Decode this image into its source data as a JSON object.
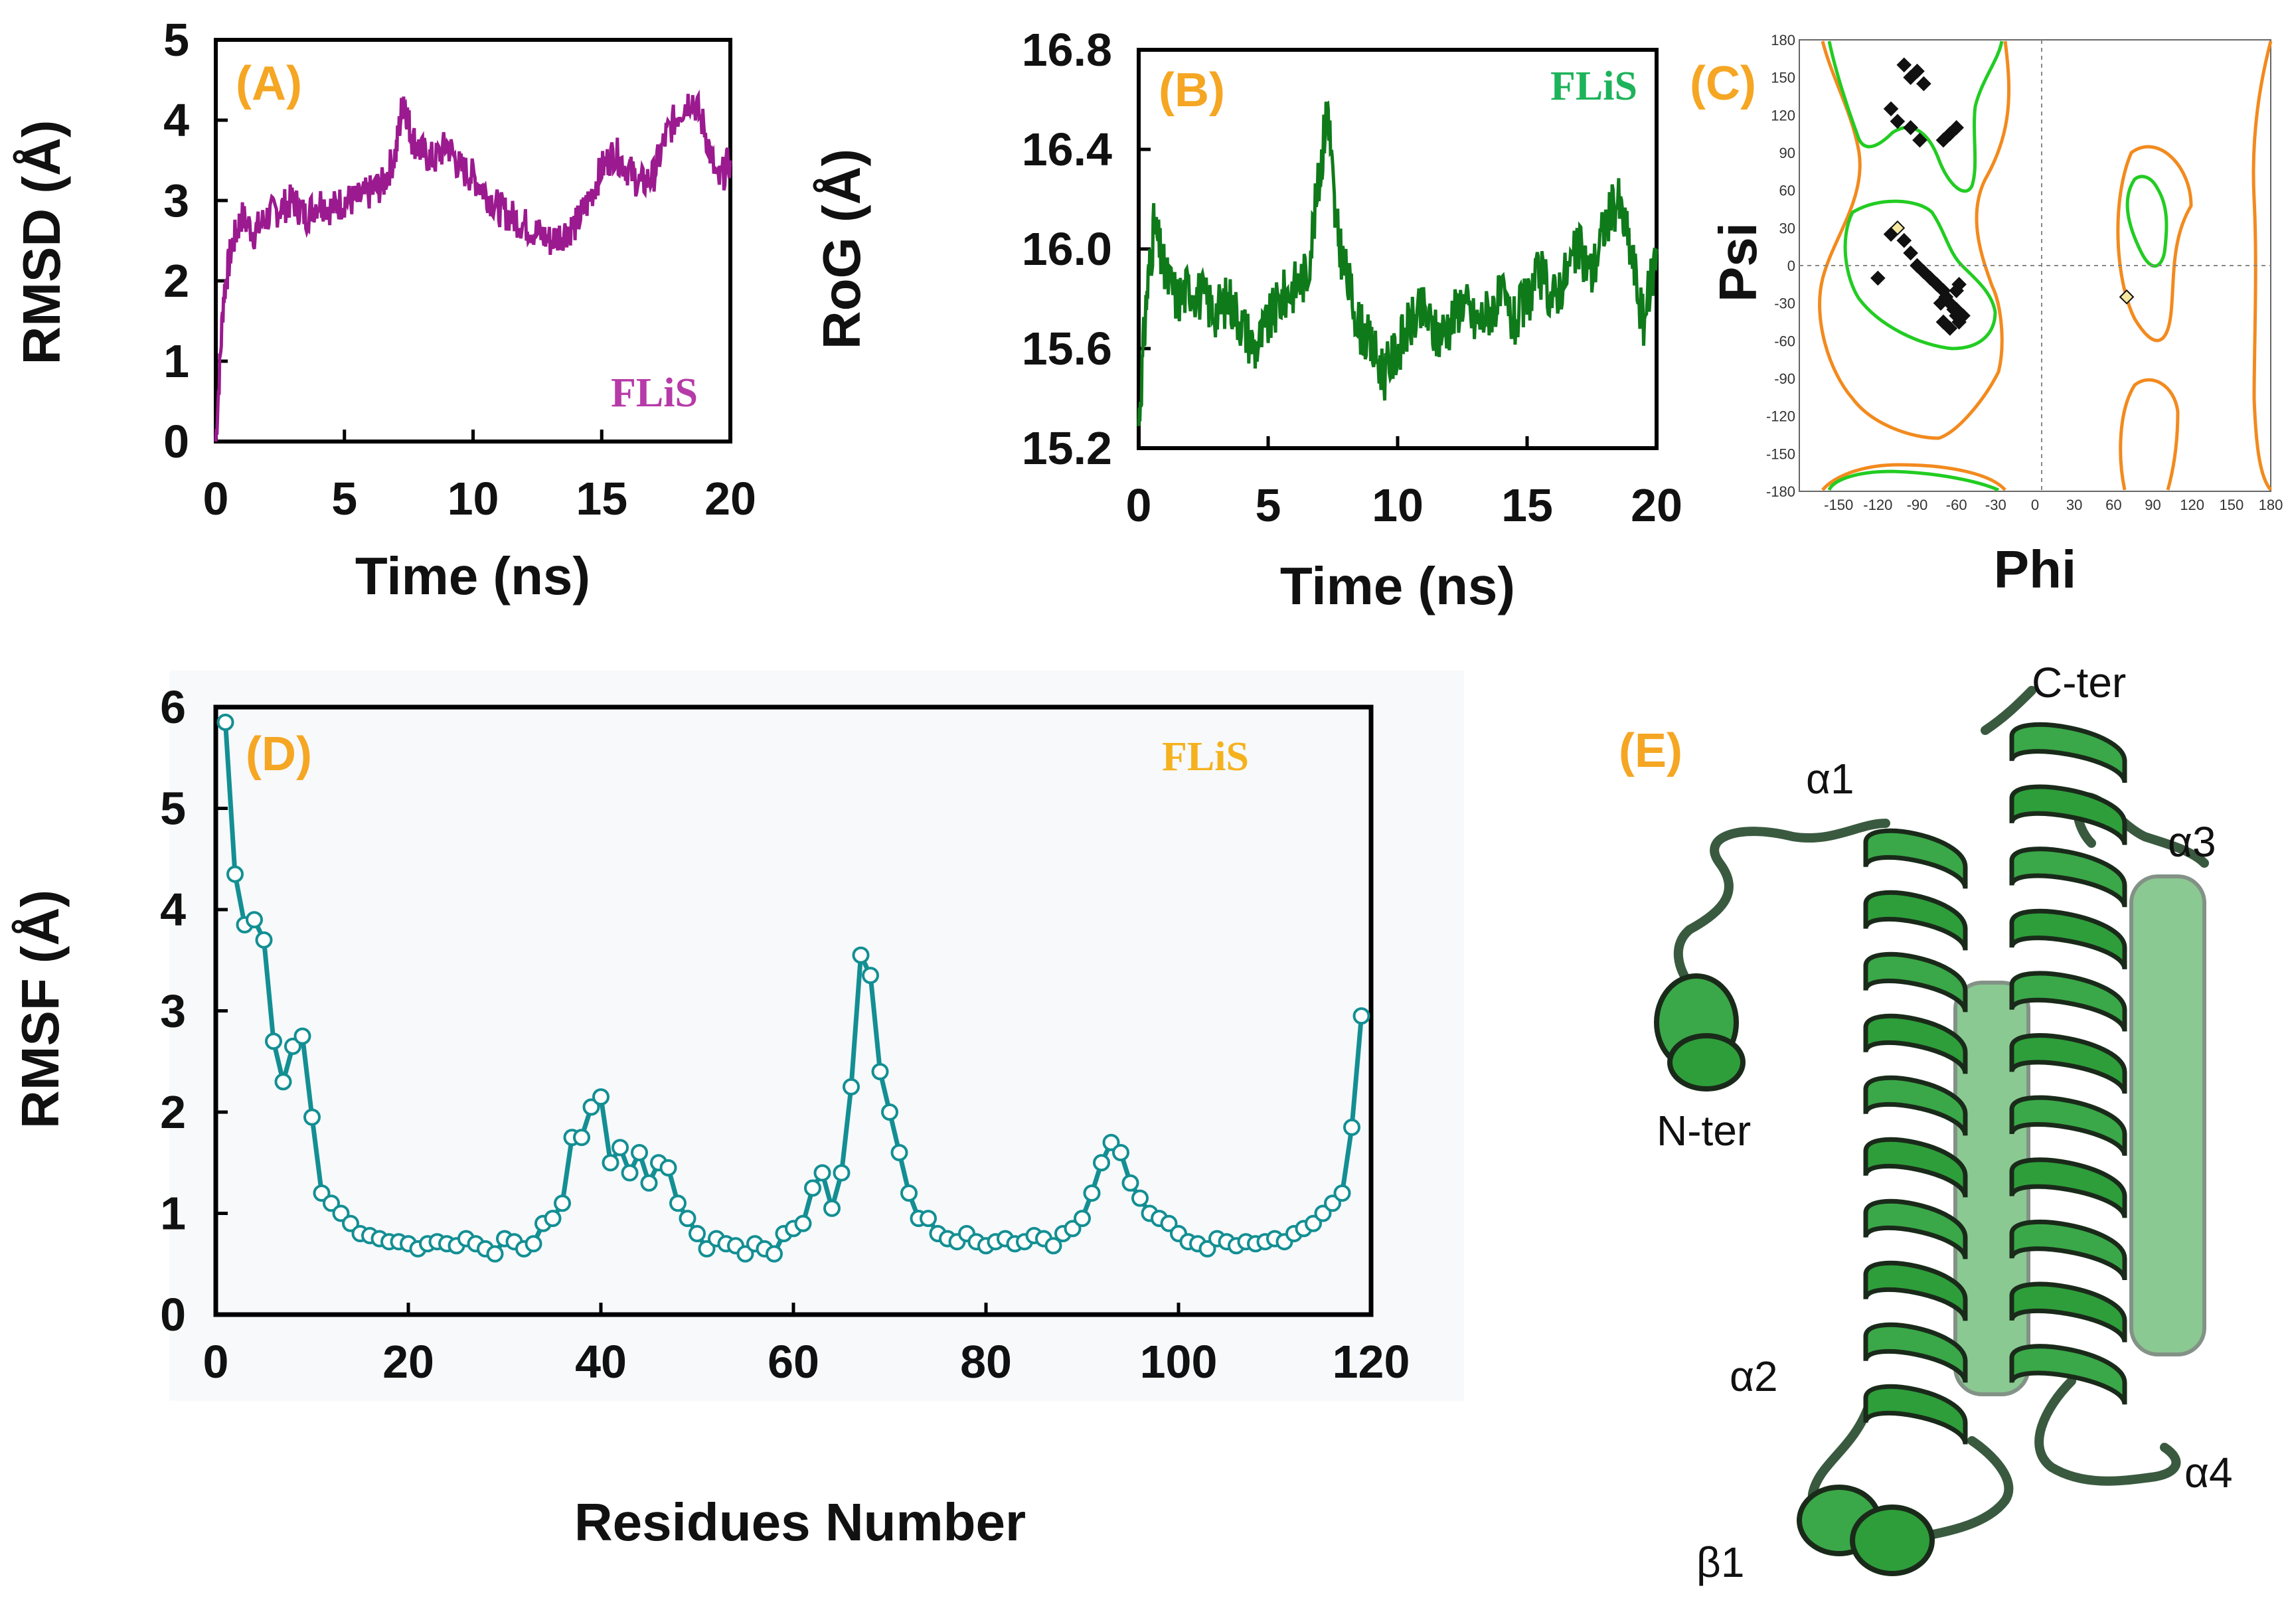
{
  "chart_data": [
    {
      "id": "A",
      "type": "line",
      "panel_label": "(A)",
      "legend": "FLiS",
      "xlabel": "Time  (ns)",
      "ylabel": "RMSD (Å)",
      "xlim": [
        0,
        20
      ],
      "ylim": [
        0,
        5
      ],
      "xticks": [
        "0",
        "5",
        "10",
        "15",
        "20"
      ],
      "yticks": [
        "0",
        "1",
        "2",
        "3",
        "4",
        "5"
      ],
      "color": "#9b1a8f",
      "series": [
        {
          "name": "FLiS",
          "x": [
            0,
            0.3,
            0.6,
            1,
            1.5,
            2,
            2.5,
            3,
            3.5,
            4,
            4.5,
            5,
            5.5,
            6,
            6.5,
            7,
            7.3,
            7.6,
            8,
            8.5,
            9,
            9.5,
            10,
            10.5,
            11,
            11.5,
            12,
            12.5,
            13,
            13.5,
            14,
            14.5,
            15,
            15.5,
            16,
            16.5,
            17,
            17.5,
            18,
            18.5,
            19,
            19.5,
            20
          ],
          "y": [
            0,
            1.8,
            2.4,
            2.8,
            2.6,
            2.8,
            2.9,
            3.0,
            2.8,
            3.0,
            2.9,
            3.0,
            3.0,
            3.1,
            3.2,
            3.6,
            4.3,
            3.8,
            3.6,
            3.5,
            3.7,
            3.4,
            3.3,
            3.1,
            2.9,
            2.8,
            2.7,
            2.6,
            2.5,
            2.6,
            2.7,
            3.0,
            3.4,
            3.6,
            3.4,
            3.2,
            3.3,
            3.8,
            4.1,
            4.3,
            3.9,
            3.2,
            3.5
          ]
        }
      ]
    },
    {
      "id": "B",
      "type": "line",
      "panel_label": "(B)",
      "legend": "FLiS",
      "xlabel": "Time (ns)",
      "ylabel": "RoG (Å)",
      "xlim": [
        0,
        20
      ],
      "ylim": [
        15.2,
        16.8
      ],
      "xticks": [
        "0",
        "5",
        "10",
        "15",
        "20"
      ],
      "yticks": [
        "15.2",
        "15.6",
        "16.0",
        "16.4",
        "16.8"
      ],
      "color": "#0f7a1a",
      "series": [
        {
          "name": "FLiS",
          "x": [
            0,
            0.3,
            0.6,
            1,
            1.5,
            2,
            2.5,
            3,
            3.5,
            4,
            4.5,
            5,
            5.5,
            6,
            6.5,
            7,
            7.3,
            7.6,
            8,
            8.5,
            9,
            9.5,
            10,
            10.5,
            11,
            11.5,
            12,
            12.5,
            13,
            13.5,
            14,
            14.5,
            15,
            15.5,
            16,
            16.5,
            17,
            17.5,
            18,
            18.5,
            19,
            19.5,
            20
          ],
          "y": [
            15.3,
            15.8,
            16.1,
            15.9,
            15.8,
            15.85,
            15.8,
            15.75,
            15.8,
            15.7,
            15.6,
            15.7,
            15.8,
            15.85,
            15.9,
            16.3,
            16.6,
            16.1,
            15.9,
            15.7,
            15.6,
            15.5,
            15.6,
            15.7,
            15.75,
            15.65,
            15.7,
            15.8,
            15.7,
            15.75,
            15.8,
            15.7,
            15.8,
            15.9,
            15.8,
            15.9,
            16.0,
            15.9,
            16.1,
            16.2,
            16.0,
            15.7,
            16.0
          ]
        }
      ]
    },
    {
      "id": "C",
      "type": "scatter",
      "panel_label": "(C)",
      "xlabel": "Phi",
      "ylabel": "Psi",
      "xlim": [
        -180,
        180
      ],
      "ylim": [
        -180,
        180
      ],
      "xticks": [
        "-150",
        "-120",
        "-90",
        "-60",
        "-30",
        "0",
        "30",
        "60",
        "90",
        "120",
        "150",
        "180"
      ],
      "yticks": [
        "180",
        "150",
        "120",
        "90",
        "60",
        "30",
        "0",
        "-30",
        "-60",
        "-90",
        "-120",
        "-150",
        "-180"
      ],
      "favored_color": "#22cc22",
      "allowed_color": "#f28a1e",
      "series": [
        {
          "name": "residues",
          "x": [
            -100,
            -95,
            -90,
            -85,
            -110,
            -105,
            -95,
            -88,
            -65,
            -60,
            -70,
            -110,
            -100,
            -95,
            -90,
            -85,
            -80,
            -75,
            -70,
            -68,
            -65,
            -62,
            -60,
            -58,
            -55,
            -60,
            -65,
            -70,
            -72,
            -60,
            -58,
            -120,
            -105,
            70
          ],
          "y": [
            160,
            150,
            155,
            145,
            125,
            115,
            110,
            100,
            105,
            110,
            100,
            25,
            20,
            10,
            0,
            -5,
            -10,
            -15,
            -20,
            -25,
            -30,
            -35,
            -40,
            -45,
            -40,
            -35,
            -50,
            -45,
            -30,
            -20,
            -15,
            -10,
            30,
            -25
          ]
        }
      ]
    },
    {
      "id": "D",
      "type": "line",
      "panel_label": "(D)",
      "legend": "FLiS",
      "xlabel": "Residues Number",
      "ylabel": "RMSF (Å)",
      "xlim": [
        0,
        120
      ],
      "ylim": [
        0,
        6
      ],
      "xticks": [
        "0",
        "20",
        "40",
        "60",
        "80",
        "100",
        "120"
      ],
      "yticks": [
        "0",
        "1",
        "2",
        "3",
        "4",
        "5",
        "6"
      ],
      "color": "#138f93",
      "series": [
        {
          "name": "FLiS",
          "x": [
            1,
            2,
            3,
            4,
            5,
            6,
            7,
            8,
            9,
            10,
            11,
            12,
            13,
            14,
            15,
            16,
            17,
            18,
            19,
            20,
            21,
            22,
            23,
            24,
            25,
            26,
            27,
            28,
            29,
            30,
            31,
            32,
            33,
            34,
            35,
            36,
            37,
            38,
            39,
            40,
            41,
            42,
            43,
            44,
            45,
            46,
            47,
            48,
            49,
            50,
            51,
            52,
            53,
            54,
            55,
            56,
            57,
            58,
            59,
            60,
            61,
            62,
            63,
            64,
            65,
            66,
            67,
            68,
            69,
            70,
            71,
            72,
            73,
            74,
            75,
            76,
            77,
            78,
            79,
            80,
            81,
            82,
            83,
            84,
            85,
            86,
            87,
            88,
            89,
            90,
            91,
            92,
            93,
            94,
            95,
            96,
            97,
            98,
            99,
            100,
            101,
            102,
            103,
            104,
            105,
            106,
            107,
            108,
            109,
            110,
            111,
            112,
            113,
            114,
            115,
            116,
            117,
            118,
            119
          ],
          "y": [
            5.85,
            4.35,
            3.85,
            3.9,
            3.7,
            2.7,
            2.3,
            2.65,
            2.75,
            1.95,
            1.2,
            1.1,
            1.0,
            0.9,
            0.8,
            0.78,
            0.75,
            0.72,
            0.72,
            0.7,
            0.65,
            0.7,
            0.72,
            0.7,
            0.68,
            0.75,
            0.7,
            0.65,
            0.6,
            0.75,
            0.72,
            0.65,
            0.7,
            0.9,
            0.95,
            1.1,
            1.75,
            1.75,
            2.05,
            2.15,
            1.5,
            1.65,
            1.4,
            1.6,
            1.3,
            1.5,
            1.45,
            1.1,
            0.95,
            0.8,
            0.65,
            0.75,
            0.7,
            0.68,
            0.6,
            0.7,
            0.65,
            0.6,
            0.8,
            0.85,
            0.9,
            1.25,
            1.4,
            1.05,
            1.4,
            2.25,
            3.55,
            3.35,
            2.4,
            2.0,
            1.6,
            1.2,
            0.95,
            0.95,
            0.8,
            0.75,
            0.72,
            0.8,
            0.72,
            0.68,
            0.72,
            0.75,
            0.7,
            0.72,
            0.78,
            0.75,
            0.68,
            0.8,
            0.85,
            0.95,
            1.2,
            1.5,
            1.7,
            1.6,
            1.3,
            1.15,
            1.0,
            0.95,
            0.9,
            0.8,
            0.72,
            0.7,
            0.65,
            0.75,
            0.72,
            0.68,
            0.72,
            0.7,
            0.72,
            0.75,
            0.72,
            0.8,
            0.85,
            0.9,
            1.0,
            1.1,
            1.2,
            1.85,
            2.95
          ]
        }
      ]
    }
  ],
  "structure": {
    "panel_label": "(E)",
    "labels": [
      "α1",
      "α2",
      "α3",
      "α4",
      "β1",
      "N-ter",
      "C-ter"
    ],
    "color": "#2e9e3a"
  }
}
